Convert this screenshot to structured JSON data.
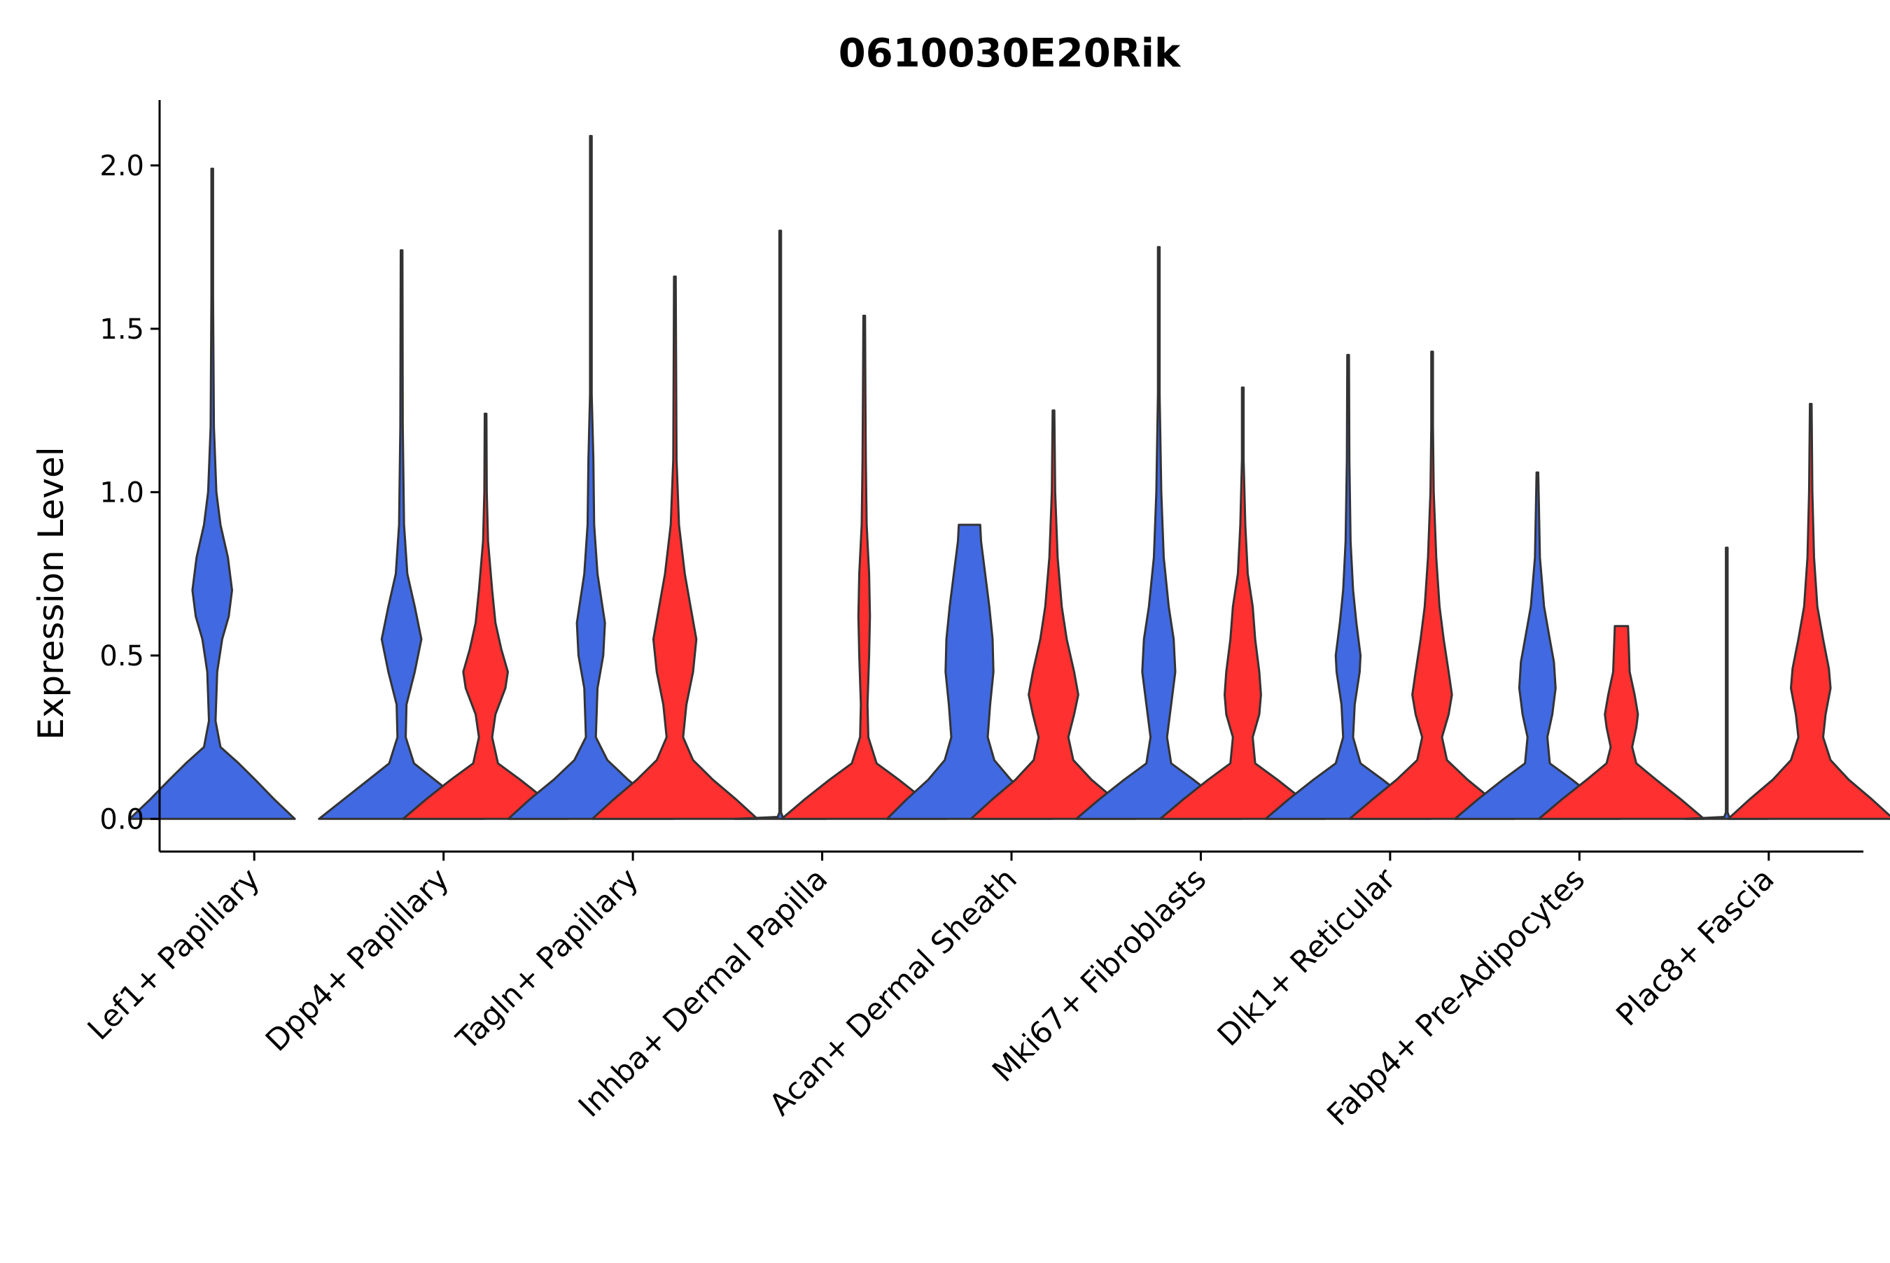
{
  "chart_data": {
    "type": "violin",
    "title": "0610030E20Rik",
    "xlabel": "",
    "ylabel": "Expression Level",
    "ylim": [
      -0.1,
      2.2
    ],
    "yticks": [
      0.0,
      0.5,
      1.0,
      1.5,
      2.0
    ],
    "ytick_labels": [
      "0.0",
      "0.5",
      "1.0",
      "1.5",
      "2.0"
    ],
    "grid": false,
    "legend": "none",
    "categories": [
      "Lef1+ Papillary",
      "Dpp4+ Papillary",
      "Tagln+ Papillary",
      "Inhba+ Dermal Papilla",
      "Acan+ Dermal Sheath",
      "Mki67+ Fibroblasts",
      "Dlk1+ Reticular",
      "Fabp4+ Pre-Adipocytes",
      "Plac8+ Fascia"
    ],
    "colors": {
      "group_1": "#4169E1",
      "group_2": "#FF3030",
      "outline": "#333333"
    },
    "violins": [
      {
        "category": "Lef1+ Papillary",
        "group": 1,
        "max": 1.99,
        "profile": [
          [
            0,
            1.0
          ],
          [
            0.06,
            0.75
          ],
          [
            0.12,
            0.52
          ],
          [
            0.17,
            0.32
          ],
          [
            0.22,
            0.1
          ],
          [
            0.3,
            0.04
          ],
          [
            0.45,
            0.06
          ],
          [
            0.55,
            0.12
          ],
          [
            0.62,
            0.2
          ],
          [
            0.7,
            0.24
          ],
          [
            0.8,
            0.19
          ],
          [
            0.9,
            0.1
          ],
          [
            1.0,
            0.05
          ],
          [
            1.2,
            0.02
          ],
          [
            1.6,
            0.01
          ],
          [
            1.99,
            0.005
          ]
        ]
      },
      {
        "category": "Dpp4+ Papillary",
        "group": 1,
        "max": 1.74,
        "profile": [
          [
            0,
            1.0
          ],
          [
            0.06,
            0.7
          ],
          [
            0.12,
            0.4
          ],
          [
            0.17,
            0.15
          ],
          [
            0.25,
            0.05
          ],
          [
            0.35,
            0.06
          ],
          [
            0.45,
            0.16
          ],
          [
            0.55,
            0.24
          ],
          [
            0.65,
            0.16
          ],
          [
            0.75,
            0.07
          ],
          [
            0.9,
            0.03
          ],
          [
            1.2,
            0.015
          ],
          [
            1.74,
            0.005
          ]
        ]
      },
      {
        "category": "Dpp4+ Papillary",
        "group": 2,
        "max": 1.24,
        "profile": [
          [
            0,
            1.0
          ],
          [
            0.06,
            0.72
          ],
          [
            0.12,
            0.42
          ],
          [
            0.17,
            0.15
          ],
          [
            0.25,
            0.08
          ],
          [
            0.32,
            0.12
          ],
          [
            0.4,
            0.24
          ],
          [
            0.45,
            0.27
          ],
          [
            0.52,
            0.19
          ],
          [
            0.6,
            0.12
          ],
          [
            0.7,
            0.08
          ],
          [
            0.85,
            0.03
          ],
          [
            1.0,
            0.015
          ],
          [
            1.24,
            0.005
          ]
        ]
      },
      {
        "category": "Tagln+ Papillary",
        "group": 1,
        "max": 2.09,
        "profile": [
          [
            0,
            1.0
          ],
          [
            0.06,
            0.74
          ],
          [
            0.12,
            0.45
          ],
          [
            0.18,
            0.2
          ],
          [
            0.25,
            0.06
          ],
          [
            0.4,
            0.08
          ],
          [
            0.5,
            0.15
          ],
          [
            0.6,
            0.17
          ],
          [
            0.75,
            0.08
          ],
          [
            0.9,
            0.04
          ],
          [
            1.1,
            0.03
          ],
          [
            1.3,
            0.01
          ],
          [
            2.09,
            0.004
          ]
        ]
      },
      {
        "category": "Tagln+ Papillary",
        "group": 2,
        "max": 1.66,
        "profile": [
          [
            0,
            1.0
          ],
          [
            0.06,
            0.74
          ],
          [
            0.12,
            0.46
          ],
          [
            0.18,
            0.22
          ],
          [
            0.25,
            0.1
          ],
          [
            0.35,
            0.14
          ],
          [
            0.45,
            0.22
          ],
          [
            0.55,
            0.26
          ],
          [
            0.65,
            0.19
          ],
          [
            0.75,
            0.12
          ],
          [
            0.9,
            0.05
          ],
          [
            1.1,
            0.02
          ],
          [
            1.66,
            0.005
          ]
        ]
      },
      {
        "category": "Inhba+ Dermal Papilla",
        "group": 1,
        "max": 1.8,
        "profile": [
          [
            0,
            0.55
          ],
          [
            0.006,
            0.03
          ],
          [
            0.02,
            0.004
          ],
          [
            1.8,
            0.003
          ]
        ]
      },
      {
        "category": "Inhba+ Dermal Papilla",
        "group": 2,
        "max": 1.54,
        "profile": [
          [
            0,
            1.0
          ],
          [
            0.06,
            0.72
          ],
          [
            0.12,
            0.42
          ],
          [
            0.17,
            0.15
          ],
          [
            0.25,
            0.05
          ],
          [
            0.35,
            0.04
          ],
          [
            0.5,
            0.06
          ],
          [
            0.62,
            0.07
          ],
          [
            0.75,
            0.06
          ],
          [
            0.9,
            0.03
          ],
          [
            1.1,
            0.02
          ],
          [
            1.3,
            0.015
          ],
          [
            1.54,
            0.005
          ]
        ]
      },
      {
        "category": "Acan+ Dermal Sheath",
        "group": 1,
        "max": 0.9,
        "profile": [
          [
            0,
            1.0
          ],
          [
            0.06,
            0.76
          ],
          [
            0.12,
            0.5
          ],
          [
            0.18,
            0.3
          ],
          [
            0.25,
            0.22
          ],
          [
            0.35,
            0.25
          ],
          [
            0.45,
            0.29
          ],
          [
            0.55,
            0.28
          ],
          [
            0.65,
            0.24
          ],
          [
            0.75,
            0.19
          ],
          [
            0.85,
            0.14
          ],
          [
            0.9,
            0.13
          ]
        ]
      },
      {
        "category": "Acan+ Dermal Sheath",
        "group": 2,
        "max": 1.25,
        "profile": [
          [
            0,
            1.0
          ],
          [
            0.06,
            0.74
          ],
          [
            0.12,
            0.46
          ],
          [
            0.18,
            0.24
          ],
          [
            0.25,
            0.18
          ],
          [
            0.32,
            0.25
          ],
          [
            0.38,
            0.3
          ],
          [
            0.45,
            0.25
          ],
          [
            0.55,
            0.16
          ],
          [
            0.65,
            0.1
          ],
          [
            0.8,
            0.05
          ],
          [
            1.0,
            0.02
          ],
          [
            1.25,
            0.005
          ]
        ]
      },
      {
        "category": "Mki67+ Fibroblasts",
        "group": 1,
        "max": 1.75,
        "profile": [
          [
            0,
            1.0
          ],
          [
            0.06,
            0.72
          ],
          [
            0.12,
            0.42
          ],
          [
            0.17,
            0.15
          ],
          [
            0.25,
            0.1
          ],
          [
            0.35,
            0.15
          ],
          [
            0.45,
            0.2
          ],
          [
            0.55,
            0.18
          ],
          [
            0.65,
            0.12
          ],
          [
            0.8,
            0.06
          ],
          [
            1.0,
            0.03
          ],
          [
            1.3,
            0.01
          ],
          [
            1.75,
            0.004
          ]
        ]
      },
      {
        "category": "Mki67+ Fibroblasts",
        "group": 2,
        "max": 1.32,
        "profile": [
          [
            0,
            1.0
          ],
          [
            0.06,
            0.72
          ],
          [
            0.12,
            0.42
          ],
          [
            0.17,
            0.15
          ],
          [
            0.25,
            0.12
          ],
          [
            0.32,
            0.2
          ],
          [
            0.38,
            0.22
          ],
          [
            0.45,
            0.2
          ],
          [
            0.55,
            0.15
          ],
          [
            0.65,
            0.12
          ],
          [
            0.75,
            0.06
          ],
          [
            0.9,
            0.03
          ],
          [
            1.1,
            0.01
          ],
          [
            1.32,
            0.004
          ]
        ]
      },
      {
        "category": "Dlk1+ Reticular",
        "group": 1,
        "max": 1.42,
        "profile": [
          [
            0,
            1.0
          ],
          [
            0.06,
            0.72
          ],
          [
            0.12,
            0.42
          ],
          [
            0.17,
            0.15
          ],
          [
            0.25,
            0.06
          ],
          [
            0.35,
            0.08
          ],
          [
            0.45,
            0.14
          ],
          [
            0.5,
            0.15
          ],
          [
            0.6,
            0.1
          ],
          [
            0.7,
            0.06
          ],
          [
            0.85,
            0.03
          ],
          [
            1.1,
            0.015
          ],
          [
            1.42,
            0.004
          ]
        ]
      },
      {
        "category": "Dlk1+ Reticular",
        "group": 2,
        "max": 1.43,
        "profile": [
          [
            0,
            1.0
          ],
          [
            0.06,
            0.72
          ],
          [
            0.12,
            0.43
          ],
          [
            0.18,
            0.18
          ],
          [
            0.25,
            0.12
          ],
          [
            0.32,
            0.2
          ],
          [
            0.38,
            0.24
          ],
          [
            0.45,
            0.2
          ],
          [
            0.55,
            0.14
          ],
          [
            0.65,
            0.09
          ],
          [
            0.8,
            0.05
          ],
          [
            1.0,
            0.02
          ],
          [
            1.2,
            0.01
          ],
          [
            1.43,
            0.004
          ]
        ]
      },
      {
        "category": "Fabp4+ Pre-Adipocytes",
        "group": 1,
        "max": 1.06,
        "profile": [
          [
            0,
            1.0
          ],
          [
            0.06,
            0.72
          ],
          [
            0.12,
            0.42
          ],
          [
            0.17,
            0.15
          ],
          [
            0.25,
            0.12
          ],
          [
            0.32,
            0.18
          ],
          [
            0.4,
            0.22
          ],
          [
            0.48,
            0.2
          ],
          [
            0.55,
            0.15
          ],
          [
            0.65,
            0.08
          ],
          [
            0.8,
            0.03
          ],
          [
            1.06,
            0.004
          ]
        ]
      },
      {
        "category": "Fabp4+ Pre-Adipocytes",
        "group": 2,
        "max": 0.59,
        "profile": [
          [
            0,
            1.0
          ],
          [
            0.06,
            0.72
          ],
          [
            0.12,
            0.42
          ],
          [
            0.17,
            0.18
          ],
          [
            0.22,
            0.13
          ],
          [
            0.28,
            0.18
          ],
          [
            0.32,
            0.2
          ],
          [
            0.38,
            0.16
          ],
          [
            0.45,
            0.1
          ],
          [
            0.52,
            0.09
          ],
          [
            0.59,
            0.08
          ]
        ]
      },
      {
        "category": "Plac8+ Fascia",
        "group": 1,
        "max": 0.83,
        "profile": [
          [
            0,
            0.5
          ],
          [
            0.006,
            0.03
          ],
          [
            0.02,
            0.004
          ],
          [
            0.83,
            0.003
          ]
        ]
      },
      {
        "category": "Plac8+ Fascia",
        "group": 2,
        "max": 1.27,
        "profile": [
          [
            0,
            1.0
          ],
          [
            0.06,
            0.74
          ],
          [
            0.12,
            0.46
          ],
          [
            0.18,
            0.24
          ],
          [
            0.25,
            0.15
          ],
          [
            0.32,
            0.18
          ],
          [
            0.4,
            0.24
          ],
          [
            0.46,
            0.22
          ],
          [
            0.55,
            0.15
          ],
          [
            0.65,
            0.08
          ],
          [
            0.8,
            0.04
          ],
          [
            1.0,
            0.02
          ],
          [
            1.27,
            0.004
          ]
        ]
      }
    ]
  }
}
